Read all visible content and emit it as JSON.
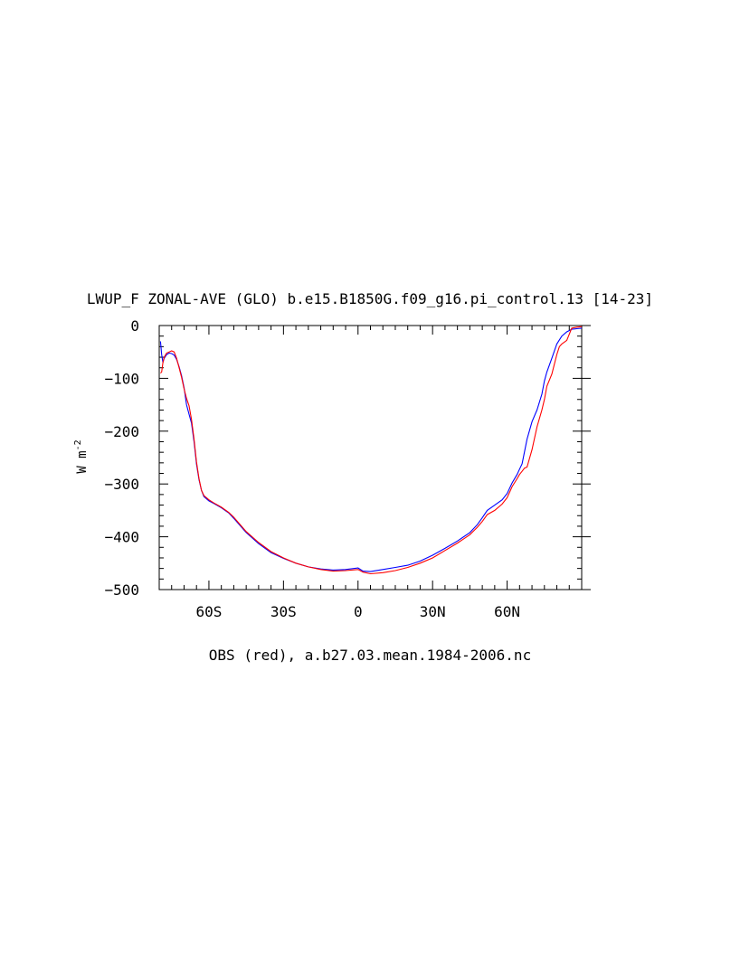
{
  "chart_data": {
    "type": "line",
    "title": "LWUP_F ZONAL-AVE (GLO) b.e15.B1850G.f09_g16.pi_control.13 [14-23]",
    "xlabel": "OBS (red), a.b27.03.mean.1984-2006.nc",
    "ylabel": "W m-2",
    "ylabel_base": "W m",
    "ylabel_exp": "-2",
    "xlim": [
      -80,
      90
    ],
    "ylim": [
      -500,
      0
    ],
    "xticks": [
      {
        "value": -60,
        "label": "60S"
      },
      {
        "value": -30,
        "label": "30S"
      },
      {
        "value": 0,
        "label": "0"
      },
      {
        "value": 30,
        "label": "30N"
      },
      {
        "value": 60,
        "label": "60N"
      }
    ],
    "yticks": [
      {
        "value": 0,
        "label": "0"
      },
      {
        "value": -100,
        "label": "−100"
      },
      {
        "value": -200,
        "label": "−200"
      },
      {
        "value": -300,
        "label": "−300"
      },
      {
        "value": -400,
        "label": "−400"
      },
      {
        "value": -500,
        "label": "−500"
      }
    ],
    "grid": false,
    "series": [
      {
        "color": "#0000ff",
        "x": [
          -79.5,
          -79,
          -78.5,
          -78,
          -77,
          -76,
          -75,
          -74,
          -73,
          -72,
          -71,
          -70,
          -69,
          -68,
          -67,
          -66,
          -65,
          -64,
          -63,
          -62,
          -60,
          -58,
          -55,
          -52,
          -50,
          -45,
          -40,
          -35,
          -30,
          -25,
          -20,
          -15,
          -10,
          -5,
          0,
          2,
          5,
          10,
          15,
          20,
          25,
          30,
          35,
          40,
          45,
          48,
          50,
          52,
          55,
          58,
          60,
          62,
          64,
          65,
          66,
          68,
          70,
          72,
          74,
          75,
          76,
          78,
          80,
          82,
          84,
          86,
          88,
          90
        ],
        "y": [
          -30,
          -55,
          -70,
          -62,
          -55,
          -52,
          -53,
          -56,
          -64,
          -78,
          -95,
          -118,
          -150,
          -168,
          -185,
          -220,
          -262,
          -292,
          -312,
          -324,
          -332,
          -337,
          -345,
          -355,
          -365,
          -392,
          -413,
          -430,
          -441,
          -450,
          -457,
          -461,
          -463,
          -462,
          -459,
          -465,
          -466,
          -462,
          -458,
          -454,
          -446,
          -435,
          -422,
          -408,
          -392,
          -377,
          -364,
          -350,
          -340,
          -330,
          -318,
          -298,
          -282,
          -272,
          -262,
          -215,
          -182,
          -160,
          -130,
          -105,
          -88,
          -62,
          -35,
          -20,
          -12,
          -7,
          -6,
          -5
        ]
      },
      {
        "color": "#ff0000",
        "x": [
          -79.5,
          -79,
          -78.5,
          -78,
          -77,
          -76,
          -75,
          -74,
          -73,
          -72,
          -71,
          -70,
          -69,
          -68,
          -67,
          -66,
          -65,
          -64,
          -63,
          -62,
          -60,
          -58,
          -55,
          -52,
          -50,
          -45,
          -40,
          -35,
          -30,
          -25,
          -20,
          -15,
          -10,
          -5,
          0,
          2,
          5,
          10,
          15,
          20,
          25,
          30,
          35,
          40,
          45,
          48,
          50,
          52,
          55,
          58,
          60,
          62,
          64,
          65,
          66,
          67,
          68,
          70,
          72,
          74,
          75,
          76,
          78,
          80,
          81,
          82,
          84,
          86,
          88,
          90
        ],
        "y": [
          -90,
          -88,
          -70,
          -60,
          -52,
          -50,
          -48,
          -50,
          -62,
          -80,
          -98,
          -120,
          -138,
          -152,
          -178,
          -215,
          -258,
          -290,
          -312,
          -322,
          -330,
          -336,
          -344,
          -354,
          -363,
          -390,
          -411,
          -428,
          -440,
          -450,
          -457,
          -462,
          -465,
          -464,
          -462,
          -467,
          -470,
          -468,
          -464,
          -458,
          -450,
          -440,
          -426,
          -412,
          -396,
          -382,
          -371,
          -358,
          -350,
          -338,
          -326,
          -305,
          -290,
          -282,
          -276,
          -270,
          -268,
          -235,
          -192,
          -160,
          -140,
          -115,
          -92,
          -55,
          -40,
          -35,
          -28,
          -5,
          -3,
          -2
        ]
      }
    ]
  }
}
